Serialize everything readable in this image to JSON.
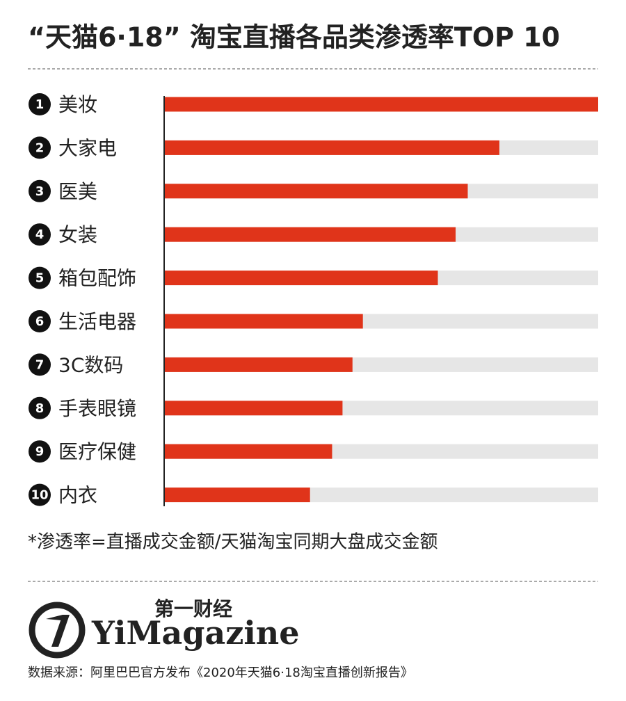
{
  "chart_data": {
    "type": "bar",
    "orientation": "horizontal",
    "title": "“天猫6·18” 淘宝直播各品类渗透率TOP 10",
    "ranks": [
      "1",
      "2",
      "3",
      "4",
      "5",
      "6",
      "7",
      "8",
      "9",
      "10"
    ],
    "categories": [
      "美妆",
      "大家电",
      "医美",
      "女装",
      "箱包配饰",
      "生活电器",
      "3C数码",
      "手表眼镜",
      "医疗保健",
      "内衣"
    ],
    "values": [
      100,
      77.2,
      69.9,
      67.1,
      63.0,
      45.7,
      43.3,
      41.0,
      38.6,
      33.5
    ],
    "xlim": [
      0,
      100
    ],
    "color": "#e0341a",
    "track_color": "#e6e6e6",
    "note": "*渗透率=直播成交金额/天猫淘宝同期大盘成交金额",
    "logo_cn": "第一财经",
    "logo_en": "YiMagazine",
    "source": "数据来源：阿里巴巴官方发布《2020年天猫6·18淘宝直播创新报告》"
  }
}
